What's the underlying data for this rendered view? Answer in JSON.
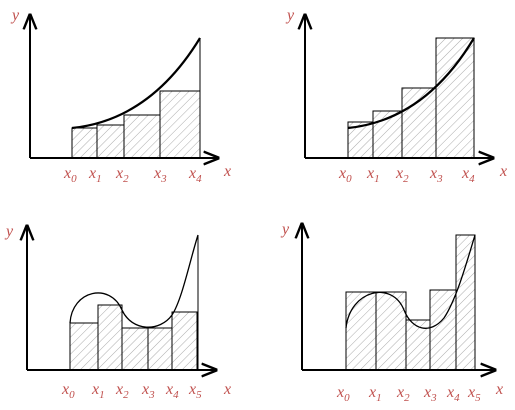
{
  "panels": [
    {
      "y_label": "y",
      "x_label": "x",
      "ticks": [
        {
          "var": "x",
          "sub": "0"
        },
        {
          "var": "x",
          "sub": "1"
        },
        {
          "var": "x",
          "sub": "2"
        },
        {
          "var": "x",
          "sub": "3"
        },
        {
          "var": "x",
          "sub": "4"
        }
      ]
    },
    {
      "y_label": "y",
      "x_label": "x",
      "ticks": [
        {
          "var": "x",
          "sub": "0"
        },
        {
          "var": "x",
          "sub": "1"
        },
        {
          "var": "x",
          "sub": "2"
        },
        {
          "var": "x",
          "sub": "3"
        },
        {
          "var": "x",
          "sub": "4"
        }
      ]
    },
    {
      "y_label": "y",
      "x_label": "x",
      "ticks": [
        {
          "var": "x",
          "sub": "0"
        },
        {
          "var": "x",
          "sub": "1"
        },
        {
          "var": "x",
          "sub": "2"
        },
        {
          "var": "x",
          "sub": "3"
        },
        {
          "var": "x",
          "sub": "4"
        },
        {
          "var": "x",
          "sub": "5"
        }
      ]
    },
    {
      "y_label": "y",
      "x_label": "x",
      "ticks": [
        {
          "var": "x",
          "sub": "0"
        },
        {
          "var": "x",
          "sub": "1"
        },
        {
          "var": "x",
          "sub": "2"
        },
        {
          "var": "x",
          "sub": "3"
        },
        {
          "var": "x",
          "sub": "4"
        },
        {
          "var": "x",
          "sub": "5"
        }
      ]
    }
  ]
}
